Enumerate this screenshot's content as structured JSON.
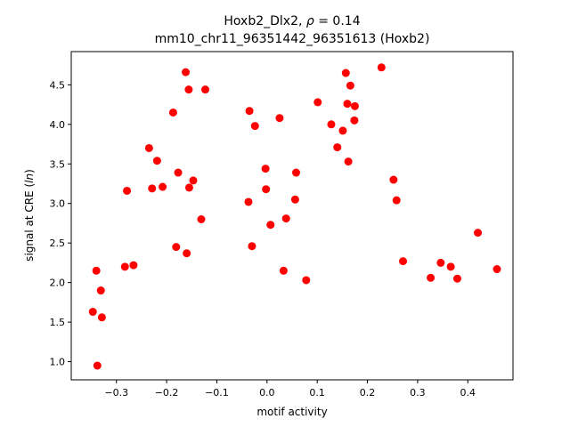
{
  "chart_data": {
    "type": "scatter",
    "title_line1_prefix": "Hoxb2_Dlx2, ",
    "title_line1_rho": "ρ",
    "title_line1_suffix": " = 0.14",
    "title_line2": "mm10_chr11_96351442_96351613 (Hoxb2)",
    "xlabel": "motif activity",
    "ylabel_prefix": "signal at CRE (",
    "ylabel_italic": "ln",
    "ylabel_suffix": ")",
    "xlim": [
      -0.39,
      0.49
    ],
    "ylim": [
      0.77,
      4.92
    ],
    "xticks": [
      {
        "value": -0.3,
        "label": "−0.3"
      },
      {
        "value": -0.2,
        "label": "−0.2"
      },
      {
        "value": -0.1,
        "label": "−0.1"
      },
      {
        "value": 0.0,
        "label": "0.0"
      },
      {
        "value": 0.1,
        "label": "0.1"
      },
      {
        "value": 0.2,
        "label": "0.2"
      },
      {
        "value": 0.3,
        "label": "0.3"
      },
      {
        "value": 0.4,
        "label": "0.4"
      }
    ],
    "yticks": [
      {
        "value": 1.0,
        "label": "1.0"
      },
      {
        "value": 1.5,
        "label": "1.5"
      },
      {
        "value": 2.0,
        "label": "2.0"
      },
      {
        "value": 2.5,
        "label": "2.5"
      },
      {
        "value": 3.0,
        "label": "3.0"
      },
      {
        "value": 3.5,
        "label": "3.5"
      },
      {
        "value": 4.0,
        "label": "4.0"
      },
      {
        "value": 4.5,
        "label": "4.5"
      }
    ],
    "grid": false,
    "point_color": "#ff0000",
    "points": [
      {
        "x": -0.347,
        "y": 1.63
      },
      {
        "x": -0.34,
        "y": 2.15
      },
      {
        "x": -0.338,
        "y": 0.95
      },
      {
        "x": -0.331,
        "y": 1.9
      },
      {
        "x": -0.329,
        "y": 1.56
      },
      {
        "x": -0.283,
        "y": 2.2
      },
      {
        "x": -0.279,
        "y": 3.16
      },
      {
        "x": -0.266,
        "y": 2.22
      },
      {
        "x": -0.235,
        "y": 3.7
      },
      {
        "x": -0.229,
        "y": 3.19
      },
      {
        "x": -0.219,
        "y": 3.54
      },
      {
        "x": -0.208,
        "y": 3.21
      },
      {
        "x": -0.187,
        "y": 4.15
      },
      {
        "x": -0.181,
        "y": 2.45
      },
      {
        "x": -0.177,
        "y": 3.39
      },
      {
        "x": -0.162,
        "y": 4.66
      },
      {
        "x": -0.16,
        "y": 2.37
      },
      {
        "x": -0.156,
        "y": 4.44
      },
      {
        "x": -0.155,
        "y": 3.2
      },
      {
        "x": -0.147,
        "y": 3.29
      },
      {
        "x": -0.131,
        "y": 2.8
      },
      {
        "x": -0.123,
        "y": 4.44
      },
      {
        "x": -0.037,
        "y": 3.02
      },
      {
        "x": -0.035,
        "y": 4.17
      },
      {
        "x": -0.03,
        "y": 2.46
      },
      {
        "x": -0.024,
        "y": 3.98
      },
      {
        "x": -0.003,
        "y": 3.44
      },
      {
        "x": -0.002,
        "y": 3.18
      },
      {
        "x": 0.007,
        "y": 2.73
      },
      {
        "x": 0.025,
        "y": 4.08
      },
      {
        "x": 0.033,
        "y": 2.15
      },
      {
        "x": 0.038,
        "y": 2.81
      },
      {
        "x": 0.056,
        "y": 3.05
      },
      {
        "x": 0.058,
        "y": 3.39
      },
      {
        "x": 0.078,
        "y": 2.03
      },
      {
        "x": 0.101,
        "y": 4.28
      },
      {
        "x": 0.128,
        "y": 4.0
      },
      {
        "x": 0.14,
        "y": 3.71
      },
      {
        "x": 0.151,
        "y": 3.92
      },
      {
        "x": 0.157,
        "y": 4.65
      },
      {
        "x": 0.16,
        "y": 4.26
      },
      {
        "x": 0.162,
        "y": 3.53
      },
      {
        "x": 0.166,
        "y": 4.49
      },
      {
        "x": 0.174,
        "y": 4.05
      },
      {
        "x": 0.175,
        "y": 4.23
      },
      {
        "x": 0.228,
        "y": 4.72
      },
      {
        "x": 0.252,
        "y": 3.3
      },
      {
        "x": 0.258,
        "y": 3.04
      },
      {
        "x": 0.271,
        "y": 2.27
      },
      {
        "x": 0.326,
        "y": 2.06
      },
      {
        "x": 0.346,
        "y": 2.25
      },
      {
        "x": 0.366,
        "y": 2.2
      },
      {
        "x": 0.379,
        "y": 2.05
      },
      {
        "x": 0.42,
        "y": 2.63
      },
      {
        "x": 0.458,
        "y": 2.17
      }
    ]
  }
}
